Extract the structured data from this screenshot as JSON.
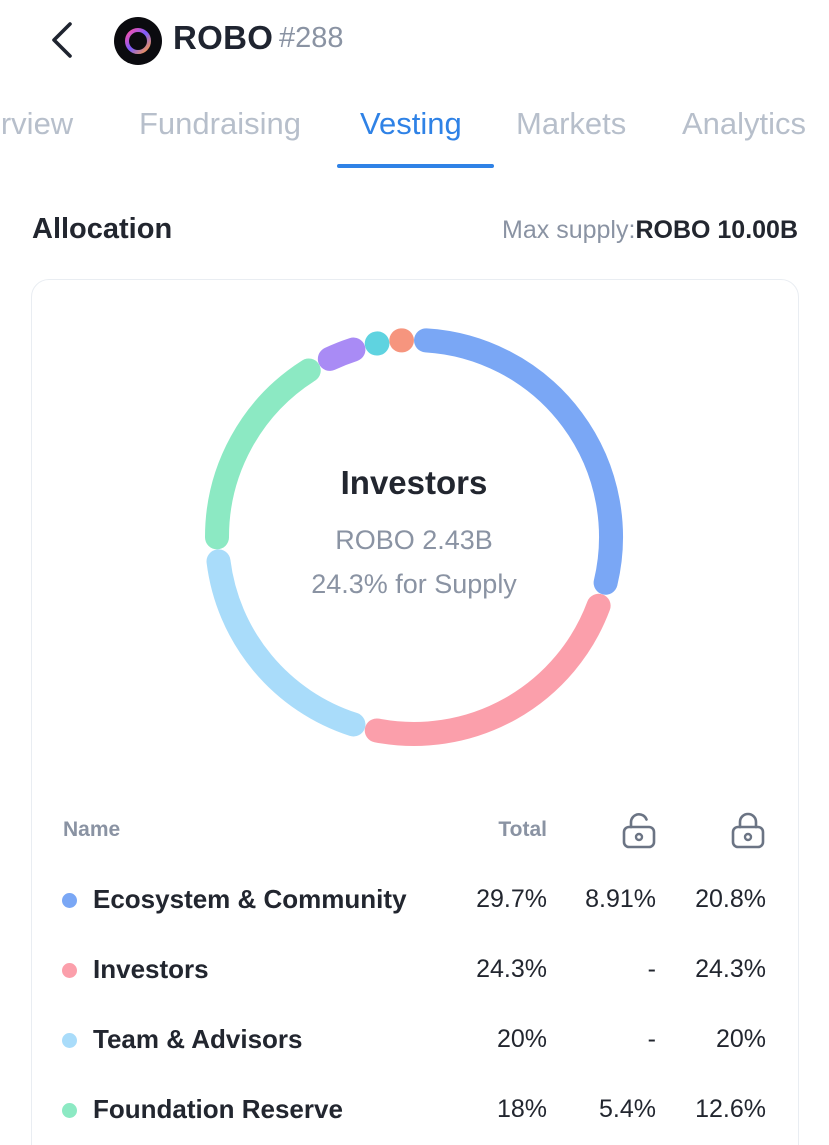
{
  "header": {
    "title": "ROBO",
    "rank": "#288",
    "back_icon": "chevron-left-icon",
    "logo_icon": "robo-logo-icon"
  },
  "tabs": [
    {
      "label": "Overview",
      "active": false
    },
    {
      "label": "Fundraising",
      "active": false
    },
    {
      "label": "Vesting",
      "active": true
    },
    {
      "label": "Markets",
      "active": false
    },
    {
      "label": "Analytics",
      "active": false
    }
  ],
  "allocation": {
    "title": "Allocation",
    "max_supply_label": "Max supply:",
    "max_supply_value": "ROBO 10.00B"
  },
  "donut": {
    "selected": {
      "name": "Investors",
      "amount": "ROBO 2.43B",
      "pct_text": "24.3% for Supply"
    }
  },
  "table": {
    "headers": {
      "name": "Name",
      "total": "Total",
      "unlocked_icon": "unlock-icon",
      "locked_icon": "lock-icon"
    },
    "rows": [
      {
        "name": "Ecosystem & Community",
        "total": "29.7%",
        "unlocked": "8.91%",
        "locked": "20.8%",
        "color": "#7aa7f5"
      },
      {
        "name": "Investors",
        "total": "24.3%",
        "unlocked": "-",
        "locked": "24.3%",
        "color": "#fb9fab"
      },
      {
        "name": "Team & Advisors",
        "total": "20%",
        "unlocked": "-",
        "locked": "20%",
        "color": "#a9dcfa"
      },
      {
        "name": "Foundation Reserve",
        "total": "18%",
        "unlocked": "5.4%",
        "locked": "12.6%",
        "color": "#8ce9c3"
      }
    ]
  },
  "chart_data": {
    "type": "pie",
    "title": "",
    "series": [
      {
        "name": "Ecosystem & Community",
        "value": 29.7,
        "color": "#7aa7f5"
      },
      {
        "name": "Investors",
        "value": 24.3,
        "color": "#fb9fab"
      },
      {
        "name": "Team & Advisors",
        "value": 20,
        "color": "#a9dcfa"
      },
      {
        "name": "Foundation Reserve",
        "value": 18,
        "color": "#8ce9c3"
      },
      {
        "value": 4,
        "color": "#a98bf5"
      },
      {
        "value": 2,
        "color": "#5fd3e0"
      },
      {
        "value": 2,
        "color": "#f6957e"
      }
    ]
  },
  "colors": {
    "accent": "#2f82e6",
    "muted": "#8a93a3"
  }
}
